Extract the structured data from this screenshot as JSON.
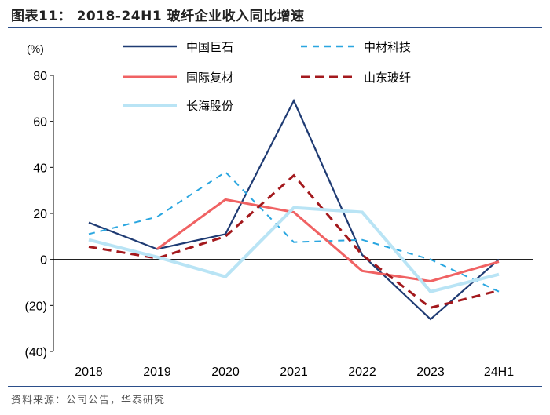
{
  "title": "图表11： 2018-24H1 玻纤企业收入同比增速",
  "source": "资料来源：公司公告，华泰研究",
  "chart_data": {
    "type": "line",
    "title": "2018-24H1 玻纤企业收入同比增速",
    "ylabel": "(%)",
    "xlabel": "",
    "ylim": [
      -40,
      80
    ],
    "yticks": [
      80,
      60,
      40,
      20,
      0,
      -20,
      -40
    ],
    "ytick_labels": [
      "80",
      "60",
      "40",
      "20",
      "0",
      "(20)",
      "(40)"
    ],
    "categories": [
      "2018",
      "2019",
      "2020",
      "2021",
      "2022",
      "2023",
      "24H1"
    ],
    "legend_position": "top",
    "series": [
      {
        "name": "中国巨石",
        "color": "#1f3b73",
        "dash": "solid",
        "width": 2.2,
        "values": [
          16,
          4.5,
          11,
          69,
          2,
          -26,
          0
        ]
      },
      {
        "name": "中材科技",
        "color": "#2aa6e0",
        "dash": "dashed",
        "width": 2.0,
        "values": [
          11,
          18.5,
          38,
          7.5,
          8.5,
          0,
          -14
        ]
      },
      {
        "name": "国际复材",
        "color": "#f06263",
        "dash": "solid",
        "width": 3.0,
        "values": [
          null,
          4.5,
          26,
          20.5,
          -5,
          -9.5,
          -1
        ]
      },
      {
        "name": "山东玻纤",
        "color": "#a3191d",
        "dash": "dashed",
        "width": 3.0,
        "values": [
          5.5,
          0.5,
          10,
          36.5,
          2,
          -21,
          -13.5
        ]
      },
      {
        "name": "长海股份",
        "color": "#b9e4f5",
        "dash": "solid",
        "width": 4.0,
        "values": [
          8.5,
          1,
          -7.5,
          22.5,
          20.5,
          -14,
          -6.5
        ]
      }
    ]
  }
}
